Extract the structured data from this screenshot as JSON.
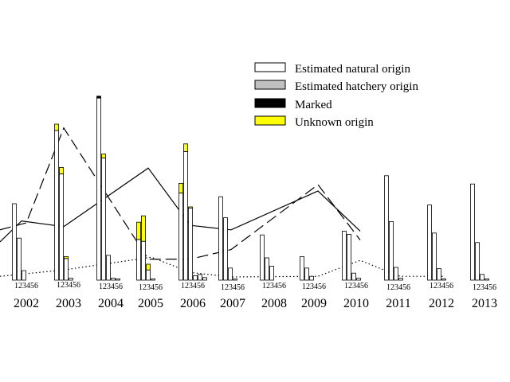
{
  "chart_data": {
    "type": "bar",
    "title": "",
    "xlabel": "",
    "ylabel": "",
    "ylim": [
      0,
      240
    ],
    "grid": false,
    "legend_placement": "top-right",
    "years": [
      "2002",
      "2003",
      "2004",
      "2005",
      "2006",
      "2007",
      "2008",
      "2009",
      "2010",
      "2011",
      "2012",
      "2013"
    ],
    "month_labels": [
      "1",
      "2",
      "3",
      "4",
      "5",
      "6"
    ],
    "year_tick_text": "123456",
    "legend": [
      {
        "label": "Estimated natural origin",
        "color": "#ffffff"
      },
      {
        "label": "Estimated hatchery origin",
        "color": "#c0c0c0"
      },
      {
        "label": "Marked",
        "color": "#000000"
      },
      {
        "label": "Unknown origin",
        "color": "#ffff00"
      }
    ],
    "bars": [
      [
        [
          120,
          0,
          0,
          0
        ],
        [
          66,
          0,
          0,
          0
        ],
        [
          15,
          0,
          0,
          0
        ],
        [
          0,
          0,
          0,
          0
        ],
        [
          0,
          0,
          0,
          0
        ],
        [
          0,
          0,
          0,
          0
        ]
      ],
      [
        [
          235,
          0,
          0,
          10
        ],
        [
          167,
          0,
          0,
          10
        ],
        [
          34,
          0,
          0,
          3
        ],
        [
          3,
          0,
          0,
          0
        ],
        [
          0,
          0,
          0,
          0
        ],
        [
          0,
          0,
          0,
          0
        ]
      ],
      [
        [
          286,
          0,
          3,
          0
        ],
        [
          192,
          0,
          0,
          6
        ],
        [
          39,
          0,
          0,
          0
        ],
        [
          3,
          0,
          0,
          0
        ],
        [
          2,
          0,
          0,
          0
        ],
        [
          0,
          0,
          0,
          0
        ]
      ],
      [
        [
          64,
          0,
          0,
          27
        ],
        [
          61,
          0,
          0,
          40
        ],
        [
          16,
          0,
          0,
          9
        ],
        [
          2,
          0,
          0,
          0
        ],
        [
          0,
          0,
          0,
          0
        ],
        [
          0,
          0,
          0,
          0
        ]
      ],
      [
        [
          137,
          0,
          0,
          15
        ],
        [
          202,
          0,
          0,
          12
        ],
        [
          113,
          0,
          0,
          2
        ],
        [
          7,
          0,
          0,
          0
        ],
        [
          9,
          0,
          0,
          0
        ],
        [
          4,
          0,
          0,
          0
        ]
      ],
      [
        [
          131,
          0,
          0,
          0
        ],
        [
          98,
          0,
          0,
          0
        ],
        [
          19,
          0,
          0,
          0
        ],
        [
          2,
          0,
          0,
          0
        ],
        [
          0,
          0,
          0,
          0
        ],
        [
          0,
          0,
          0,
          0
        ]
      ],
      [
        [
          71,
          0,
          0,
          0
        ],
        [
          35,
          0,
          0,
          0
        ],
        [
          22,
          0,
          0,
          0
        ],
        [
          0,
          0,
          0,
          0
        ],
        [
          0,
          0,
          0,
          0
        ],
        [
          0,
          0,
          0,
          0
        ]
      ],
      [
        [
          37,
          0,
          0,
          0
        ],
        [
          19,
          0,
          0,
          0
        ],
        [
          6,
          0,
          0,
          0
        ],
        [
          0,
          0,
          0,
          0
        ],
        [
          0,
          0,
          0,
          0
        ],
        [
          0,
          0,
          0,
          0
        ]
      ],
      [
        [
          77,
          0,
          0,
          0
        ],
        [
          72,
          0,
          0,
          0
        ],
        [
          11,
          0,
          0,
          0
        ],
        [
          3,
          0,
          0,
          0
        ],
        [
          0,
          0,
          0,
          0
        ],
        [
          0,
          0,
          0,
          0
        ]
      ],
      [
        [
          164,
          0,
          0,
          0
        ],
        [
          92,
          0,
          0,
          0
        ],
        [
          20,
          0,
          0,
          0
        ],
        [
          3,
          0,
          0,
          0
        ],
        [
          0,
          0,
          0,
          0
        ],
        [
          0,
          0,
          0,
          0
        ]
      ],
      [
        [
          118,
          0,
          0,
          0
        ],
        [
          74,
          0,
          0,
          0
        ],
        [
          18,
          0,
          0,
          0
        ],
        [
          2,
          0,
          0,
          0
        ],
        [
          0,
          0,
          0,
          0
        ],
        [
          0,
          0,
          0,
          0
        ]
      ],
      [
        [
          151,
          0,
          0,
          0
        ],
        [
          59,
          0,
          0,
          0
        ],
        [
          9,
          0,
          0,
          0
        ],
        [
          2,
          0,
          0,
          0
        ],
        [
          0,
          0,
          0,
          0
        ],
        [
          0,
          0,
          0,
          0
        ]
      ]
    ],
    "lines": [
      {
        "style": "solid",
        "values": [
          60,
          93,
          84,
          176,
          86,
          79,
          140,
          77
        ]
      },
      {
        "style": "dashed",
        "values": [
          79,
          90,
          239,
          33,
          33,
          48,
          150,
          63
        ]
      },
      {
        "style": "dotted",
        "values": [
          6,
          16,
          36,
          12,
          5,
          6,
          31,
          6,
          6
        ]
      }
    ]
  }
}
